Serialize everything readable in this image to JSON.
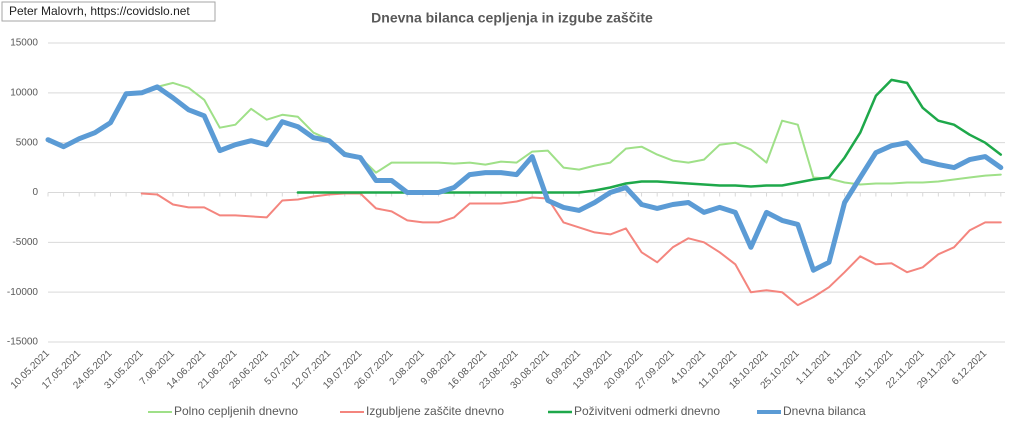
{
  "chart_data": {
    "type": "line",
    "title": "Dnevna bilanca cepljenja in izgube zaščite",
    "annotation": "Peter Malovrh, https://covidslo.net",
    "categories": [
      "10.05.2021",
      null,
      "17.05.2021",
      null,
      "24.05.2021",
      null,
      "31.05.2021",
      null,
      "7.06.2021",
      null,
      "14.06.2021",
      null,
      "21.06.2021",
      null,
      "28.06.2021",
      null,
      "5.07.2021",
      null,
      "12.07.2021",
      null,
      "19.07.2021",
      null,
      "26.07.2021",
      null,
      "2.08.2021",
      null,
      "9.08.2021",
      null,
      "16.08.2021",
      null,
      "23.08.2021",
      null,
      "30.08.2021",
      null,
      "6.09.2021",
      null,
      "13.09.2021",
      null,
      "20.09.2021",
      null,
      "27.09.2021",
      null,
      "4.10.2021",
      null,
      "11.10.2021",
      null,
      "18.10.2021",
      null,
      "25.10.2021",
      null,
      "1.11.2021",
      null,
      "8.11.2021",
      null,
      "15.11.2021",
      null,
      "22.11.2021",
      null,
      "29.11.2021",
      null,
      "6.12.2021",
      null
    ],
    "series": [
      {
        "name": "Polno cepljenih dnevno",
        "color": "#9fe088",
        "width": 2,
        "values": [
          5300,
          4600,
          5400,
          6000,
          7000,
          9900,
          10000,
          10600,
          11000,
          10500,
          9300,
          6500,
          6800,
          8400,
          7300,
          7800,
          7600,
          6000,
          5300,
          4000,
          3500,
          2000,
          3000,
          3000,
          3000,
          3000,
          2900,
          3000,
          2800,
          3100,
          3000,
          4100,
          4200,
          2500,
          2300,
          2700,
          3000,
          4400,
          4600,
          3800,
          3200,
          3000,
          3300,
          4800,
          5000,
          4300,
          3000,
          7200,
          6800,
          1500,
          1400,
          1000,
          800,
          900,
          900,
          1000,
          1000,
          1100,
          1300,
          1500,
          1700,
          1800
        ]
      },
      {
        "name": "Izgubljene zaščite dnevno",
        "color": "#f4857e",
        "width": 2,
        "values": [
          null,
          null,
          null,
          null,
          null,
          null,
          -100,
          -200,
          -1200,
          -1500,
          -1500,
          -2300,
          -2300,
          -2400,
          -2500,
          -800,
          -700,
          -400,
          -200,
          -100,
          -100,
          -1600,
          -1900,
          -2800,
          -3000,
          -3000,
          -2500,
          -1100,
          -1100,
          -1100,
          -900,
          -500,
          -600,
          -3000,
          -3500,
          -4000,
          -4200,
          -3600,
          -6000,
          -7000,
          -5500,
          -4600,
          -5000,
          -6000,
          -7200,
          -10000,
          -9800,
          -10000,
          -11300,
          -10500,
          -9500,
          -8000,
          -6400,
          -7200,
          -7100,
          -8000,
          -7500,
          -6200,
          -5500,
          -3800,
          -3000,
          -3000
        ]
      },
      {
        "name": "Poživitveni odmerki dnevno",
        "color": "#1ea84a",
        "width": 2.5,
        "values": [
          null,
          null,
          null,
          null,
          null,
          null,
          null,
          null,
          null,
          null,
          null,
          null,
          null,
          null,
          null,
          null,
          0,
          0,
          0,
          0,
          0,
          0,
          0,
          0,
          0,
          0,
          0,
          0,
          0,
          0,
          0,
          0,
          0,
          0,
          0,
          200,
          500,
          900,
          1100,
          1100,
          1000,
          900,
          800,
          700,
          700,
          600,
          700,
          700,
          1000,
          1300,
          1500,
          3500,
          6000,
          9700,
          11300,
          11000,
          8500,
          7200,
          6800,
          5800,
          5000,
          3800
        ]
      },
      {
        "name": "Dnevna bilanca",
        "color": "#5b9bd5",
        "width": 5,
        "values": [
          5300,
          4600,
          5400,
          6000,
          7000,
          9900,
          10000,
          10600,
          9500,
          8300,
          7700,
          4200,
          4800,
          5200,
          4800,
          7100,
          6600,
          5500,
          5200,
          3800,
          3500,
          1200,
          1200,
          0,
          0,
          0,
          500,
          1800,
          2000,
          2000,
          1800,
          3600,
          -800,
          -1500,
          -1800,
          -1000,
          0,
          500,
          -1200,
          -1600,
          -1200,
          -1000,
          -2000,
          -1500,
          -2000,
          -5500,
          -2000,
          -2800,
          -3200,
          -7800,
          -7000,
          -1000,
          1500,
          4000,
          4700,
          5000,
          3200,
          2800,
          2500,
          3300,
          3600,
          2500
        ]
      }
    ],
    "ylim": [
      -15000,
      15000
    ],
    "yticks": [
      -15000,
      -10000,
      -5000,
      0,
      5000,
      10000,
      15000
    ],
    "grid": true,
    "legend": "bottom"
  }
}
